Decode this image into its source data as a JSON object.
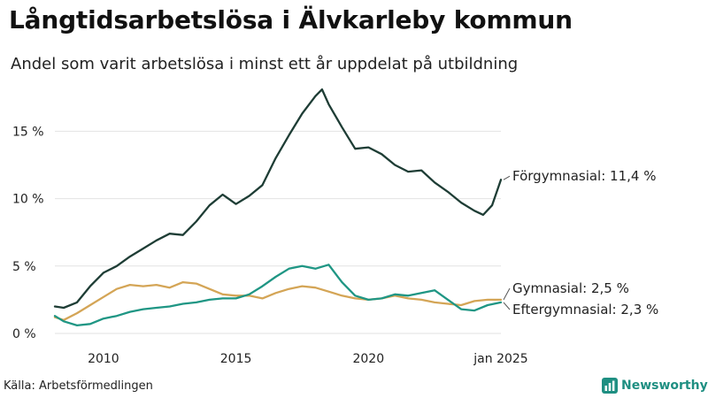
{
  "header": {
    "title": "Långtidsarbetslösa i Älvkarleby kommun",
    "subtitle": "Andel som varit arbetslösa i minst ett år uppdelat på utbildning"
  },
  "footer": {
    "source": "Källa: Arbetsförmedlingen",
    "brand": "Newsworthy"
  },
  "colors": {
    "forgymnasial": "#1e3d35",
    "gymnasial": "#d4a556",
    "eftergymnasial": "#1f9684",
    "grid": "#e2e2e2",
    "text": "#222222",
    "brand": "#1f8f82"
  },
  "chart_data": {
    "type": "line",
    "x_ticks": [
      "2010",
      "2015",
      "2020",
      "jan 2025"
    ],
    "y_ticks": [
      "0 %",
      "5 %",
      "10 %",
      "15 %"
    ],
    "ylim": [
      0,
      18.5
    ],
    "grid": true,
    "series": [
      {
        "name": "Förgymnasial",
        "label": "Förgymnasial: 11,4 %",
        "color": "#1e3d35",
        "points": [
          [
            "2008-03",
            2.0
          ],
          [
            "2008-07",
            1.9
          ],
          [
            "2009-01",
            2.3
          ],
          [
            "2009-07",
            3.5
          ],
          [
            "2010-01",
            4.5
          ],
          [
            "2010-07",
            5.0
          ],
          [
            "2011-01",
            5.7
          ],
          [
            "2011-07",
            6.3
          ],
          [
            "2012-01",
            6.9
          ],
          [
            "2012-07",
            7.4
          ],
          [
            "2013-01",
            7.3
          ],
          [
            "2013-07",
            8.3
          ],
          [
            "2014-01",
            9.5
          ],
          [
            "2014-07",
            10.3
          ],
          [
            "2015-01",
            9.6
          ],
          [
            "2015-07",
            10.2
          ],
          [
            "2016-01",
            11.0
          ],
          [
            "2016-07",
            13.0
          ],
          [
            "2017-01",
            14.7
          ],
          [
            "2017-07",
            16.3
          ],
          [
            "2018-01",
            17.6
          ],
          [
            "2018-04",
            18.1
          ],
          [
            "2018-07",
            17.0
          ],
          [
            "2019-01",
            15.3
          ],
          [
            "2019-07",
            13.7
          ],
          [
            "2020-01",
            13.8
          ],
          [
            "2020-07",
            13.3
          ],
          [
            "2021-01",
            12.5
          ],
          [
            "2021-07",
            12.0
          ],
          [
            "2022-01",
            12.1
          ],
          [
            "2022-07",
            11.2
          ],
          [
            "2023-01",
            10.5
          ],
          [
            "2023-07",
            9.7
          ],
          [
            "2024-01",
            9.1
          ],
          [
            "2024-05",
            8.8
          ],
          [
            "2024-09",
            9.5
          ],
          [
            "2025-01",
            11.4
          ]
        ]
      },
      {
        "name": "Gymnasial",
        "label": "Gymnasial:  2,5 %",
        "color": "#d4a556",
        "points": [
          [
            "2008-03",
            1.2
          ],
          [
            "2008-07",
            1.0
          ],
          [
            "2009-01",
            1.5
          ],
          [
            "2009-07",
            2.1
          ],
          [
            "2010-01",
            2.7
          ],
          [
            "2010-07",
            3.3
          ],
          [
            "2011-01",
            3.6
          ],
          [
            "2011-07",
            3.5
          ],
          [
            "2012-01",
            3.6
          ],
          [
            "2012-07",
            3.4
          ],
          [
            "2013-01",
            3.8
          ],
          [
            "2013-07",
            3.7
          ],
          [
            "2014-01",
            3.3
          ],
          [
            "2014-07",
            2.9
          ],
          [
            "2015-01",
            2.8
          ],
          [
            "2015-07",
            2.8
          ],
          [
            "2016-01",
            2.6
          ],
          [
            "2016-07",
            3.0
          ],
          [
            "2017-01",
            3.3
          ],
          [
            "2017-07",
            3.5
          ],
          [
            "2018-01",
            3.4
          ],
          [
            "2018-07",
            3.1
          ],
          [
            "2019-01",
            2.8
          ],
          [
            "2019-07",
            2.6
          ],
          [
            "2020-01",
            2.5
          ],
          [
            "2020-07",
            2.6
          ],
          [
            "2021-01",
            2.8
          ],
          [
            "2021-07",
            2.6
          ],
          [
            "2022-01",
            2.5
          ],
          [
            "2022-07",
            2.3
          ],
          [
            "2023-01",
            2.2
          ],
          [
            "2023-07",
            2.1
          ],
          [
            "2024-01",
            2.4
          ],
          [
            "2024-07",
            2.5
          ],
          [
            "2025-01",
            2.5
          ]
        ]
      },
      {
        "name": "Eftergymnasial",
        "label": "Eftergymnasial:  2,3 %",
        "color": "#1f9684",
        "points": [
          [
            "2008-03",
            1.3
          ],
          [
            "2008-07",
            0.9
          ],
          [
            "2009-01",
            0.6
          ],
          [
            "2009-07",
            0.7
          ],
          [
            "2010-01",
            1.1
          ],
          [
            "2010-07",
            1.3
          ],
          [
            "2011-01",
            1.6
          ],
          [
            "2011-07",
            1.8
          ],
          [
            "2012-01",
            1.9
          ],
          [
            "2012-07",
            2.0
          ],
          [
            "2013-01",
            2.2
          ],
          [
            "2013-07",
            2.3
          ],
          [
            "2014-01",
            2.5
          ],
          [
            "2014-07",
            2.6
          ],
          [
            "2015-01",
            2.6
          ],
          [
            "2015-07",
            2.9
          ],
          [
            "2016-01",
            3.5
          ],
          [
            "2016-07",
            4.2
          ],
          [
            "2017-01",
            4.8
          ],
          [
            "2017-07",
            5.0
          ],
          [
            "2018-01",
            4.8
          ],
          [
            "2018-07",
            5.1
          ],
          [
            "2019-01",
            3.8
          ],
          [
            "2019-07",
            2.8
          ],
          [
            "2020-01",
            2.5
          ],
          [
            "2020-07",
            2.6
          ],
          [
            "2021-01",
            2.9
          ],
          [
            "2021-07",
            2.8
          ],
          [
            "2022-01",
            3.0
          ],
          [
            "2022-07",
            3.2
          ],
          [
            "2023-01",
            2.5
          ],
          [
            "2023-07",
            1.8
          ],
          [
            "2024-01",
            1.7
          ],
          [
            "2024-07",
            2.1
          ],
          [
            "2025-01",
            2.3
          ]
        ]
      }
    ]
  }
}
